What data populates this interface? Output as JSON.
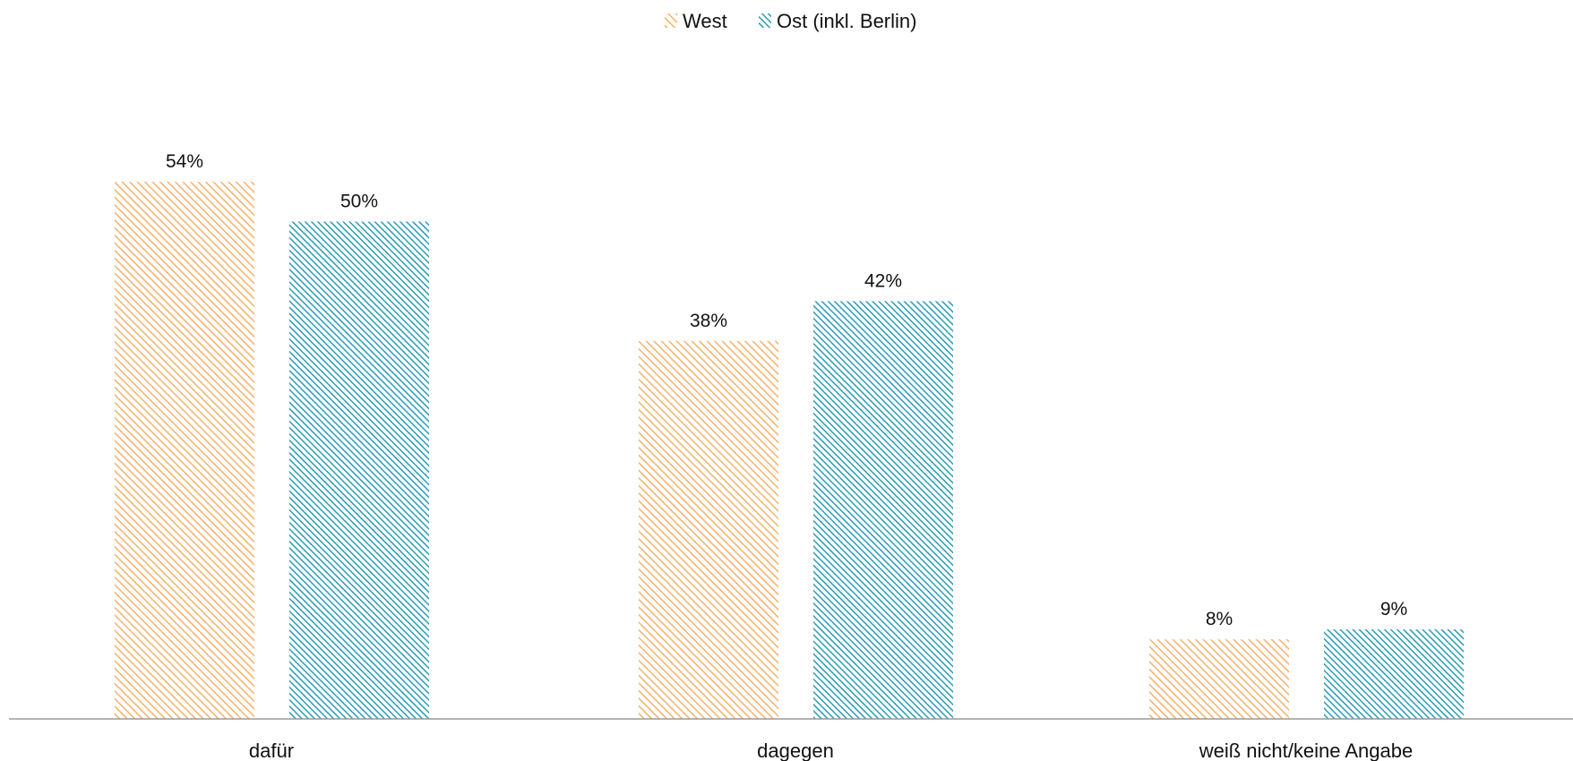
{
  "chart_data": {
    "type": "bar",
    "categories": [
      "dafür",
      "dagegen",
      "weiß nicht/keine Angabe"
    ],
    "series": [
      {
        "name": "West",
        "values": [
          54,
          38,
          8
        ],
        "value_labels": [
          "54%",
          "38%",
          "8%"
        ],
        "color": "#F5B26B",
        "pattern": "diagonal-hatch"
      },
      {
        "name": "Ost (inkl. Berlin)",
        "values": [
          50,
          42,
          9
        ],
        "value_labels": [
          "50%",
          "42%",
          "9%"
        ],
        "color": "#2A9DB4",
        "pattern": "diagonal-hatch"
      }
    ],
    "ylim": [
      0,
      60
    ],
    "unit": "%",
    "legend_position": "top-center",
    "grid": false,
    "axis_line": "bottom"
  }
}
